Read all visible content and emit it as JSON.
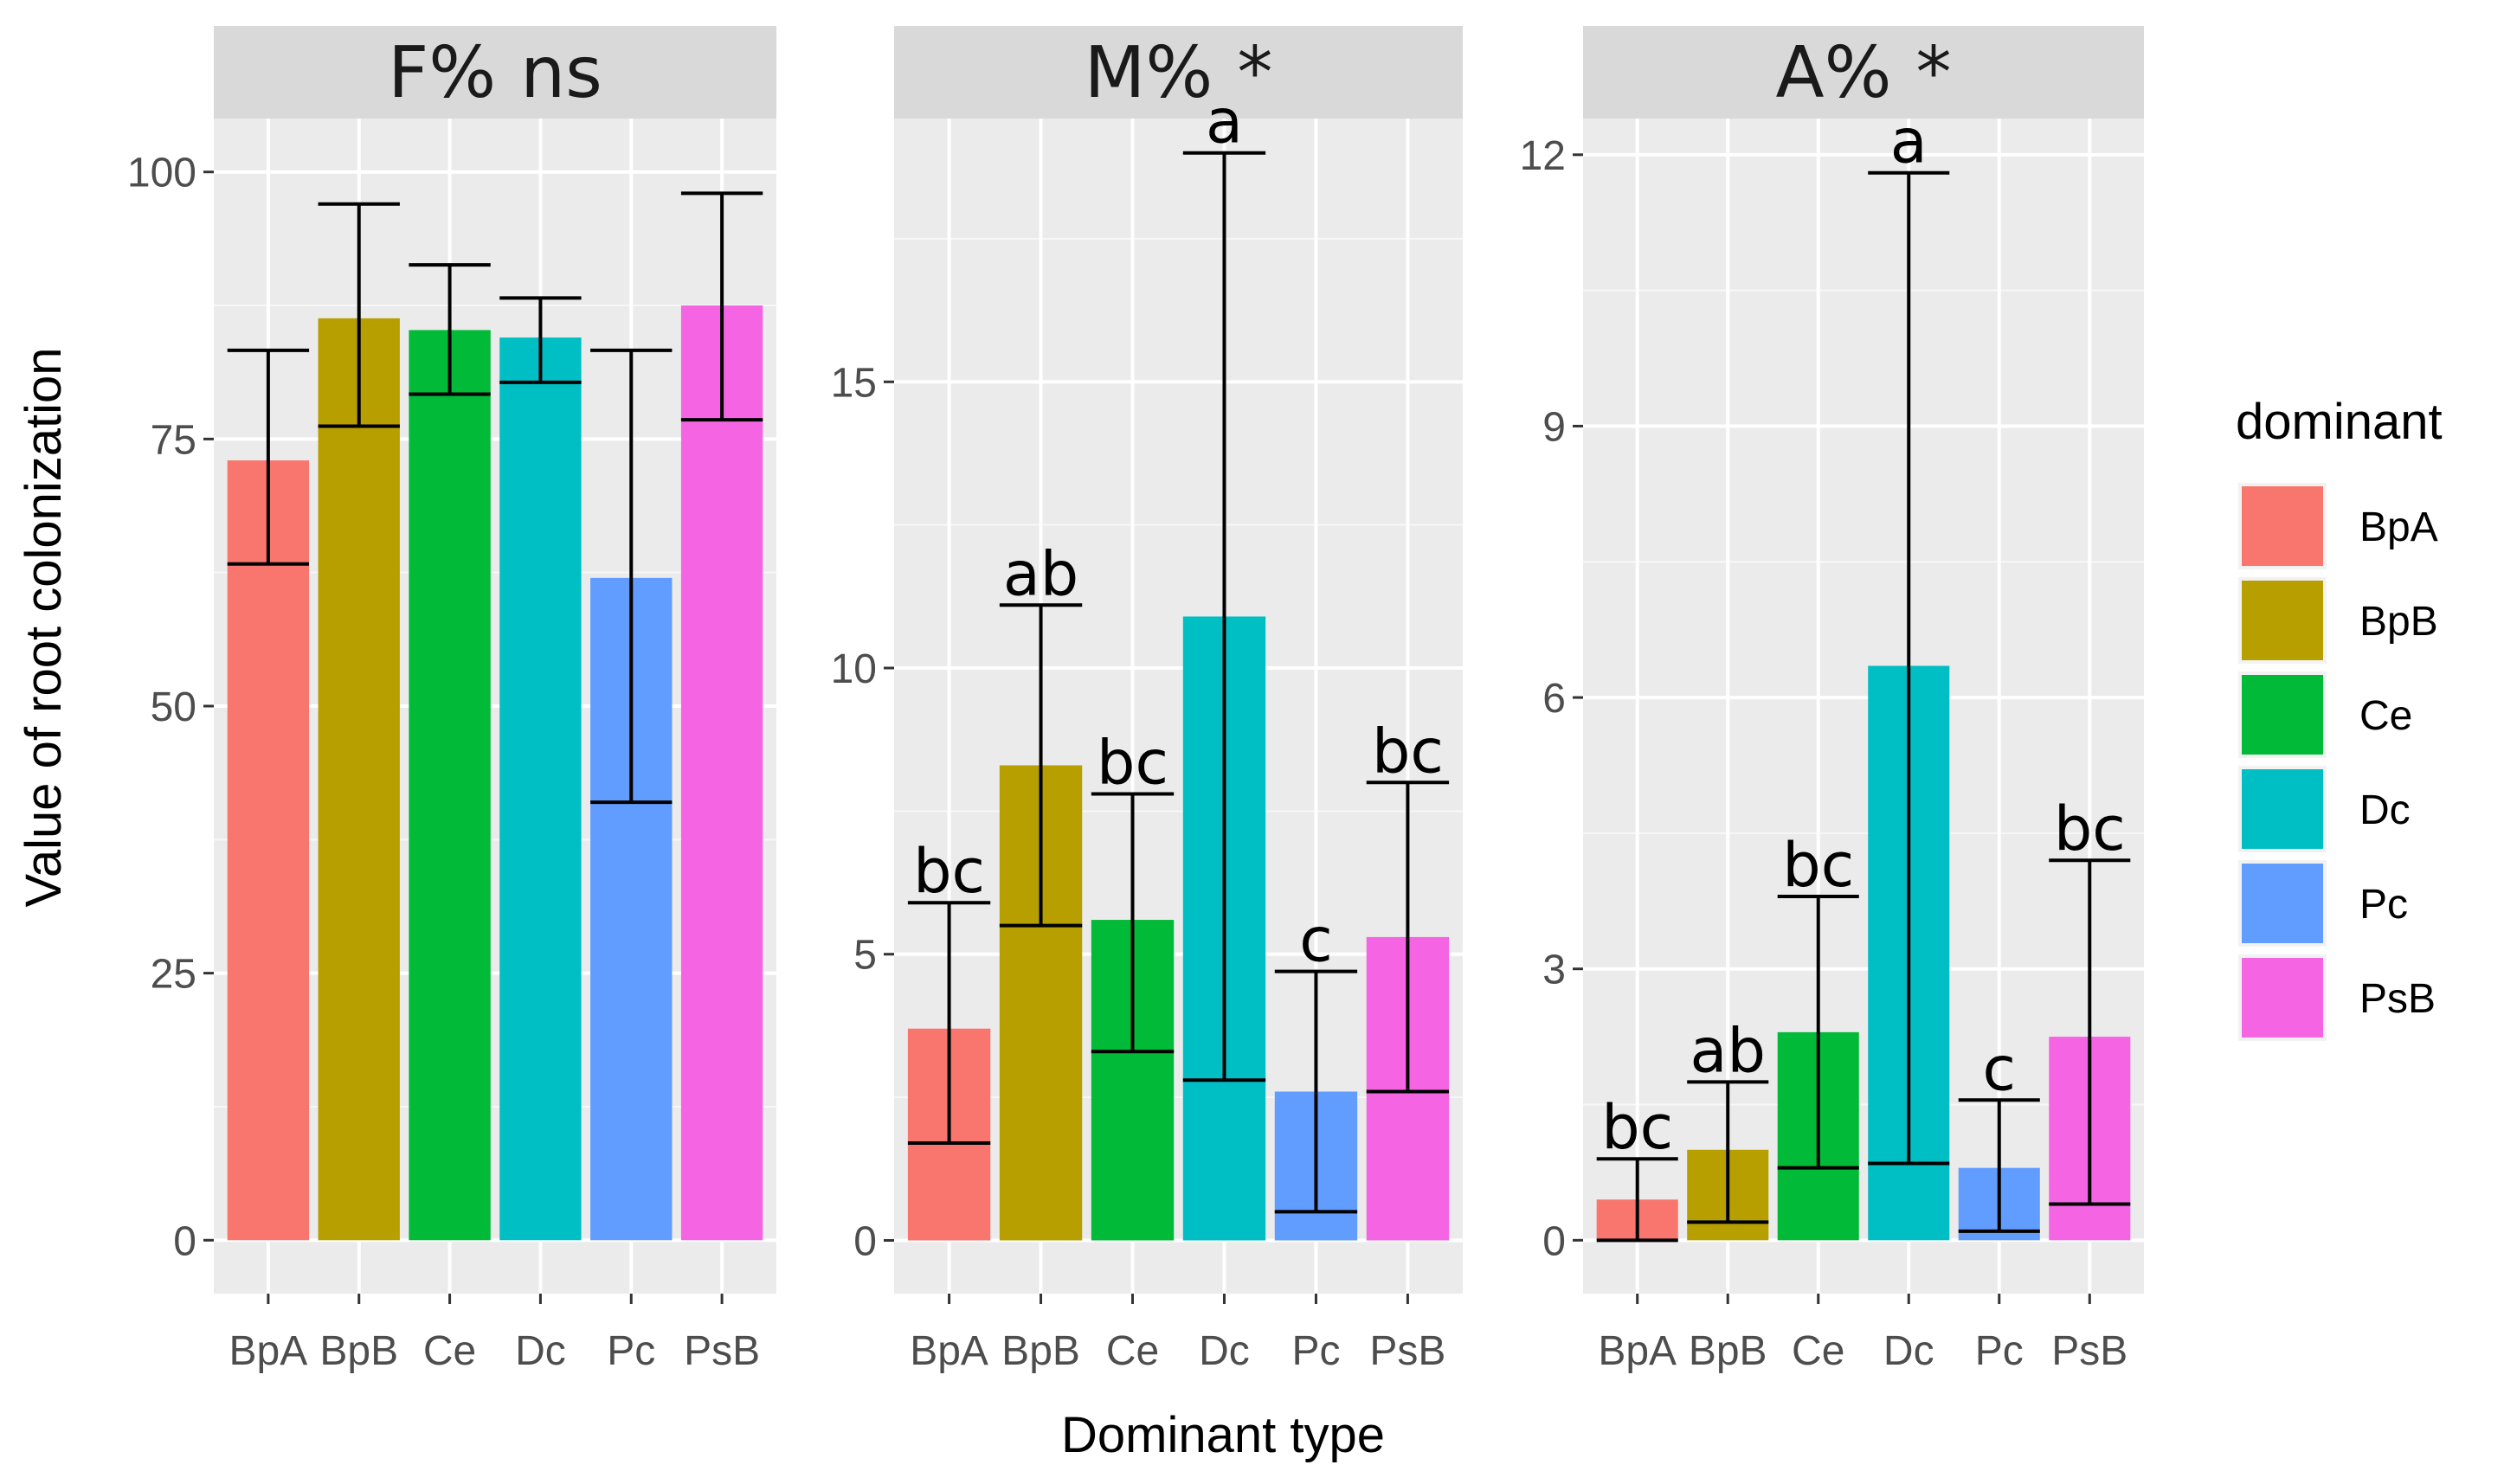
{
  "chart_data": {
    "type": "bar",
    "x_title": "Dominant type",
    "y_title": "Value of root colonization",
    "legend": {
      "title": "dominant",
      "placement": "right",
      "entries": [
        {
          "label": "BpA",
          "color": "#F8766D"
        },
        {
          "label": "BpB",
          "color": "#B79F00"
        },
        {
          "label": "Ce",
          "color": "#00BA38"
        },
        {
          "label": "Dc",
          "color": "#00BFC4"
        },
        {
          "label": "Pc",
          "color": "#619CFF"
        },
        {
          "label": "PsB",
          "color": "#F564E3"
        }
      ]
    },
    "categories": [
      "BpA",
      "BpB",
      "Ce",
      "Dc",
      "Pc",
      "PsB"
    ],
    "panels": [
      {
        "title": "F%",
        "sig_label": "ns",
        "ylim": [
          -5,
          105
        ],
        "yticks": [
          0,
          25,
          50,
          75,
          100
        ],
        "ytick_labels": [
          "0",
          "25",
          "50",
          "75",
          "100"
        ],
        "values": [
          73.0,
          86.3,
          85.2,
          84.5,
          62.0,
          87.5
        ],
        "err_low": [
          63.3,
          76.2,
          79.2,
          80.3,
          41.0,
          76.8
        ],
        "err_high": [
          83.3,
          97.0,
          91.3,
          88.2,
          83.3,
          98.0
        ],
        "letters": [
          "",
          "",
          "",
          "",
          "",
          ""
        ]
      },
      {
        "title": "M%",
        "sig_label": "*",
        "ylim": [
          -0.93,
          19.6
        ],
        "yticks": [
          0,
          5,
          10,
          15
        ],
        "ytick_labels": [
          "0",
          "5",
          "10",
          "15"
        ],
        "values": [
          3.7,
          8.3,
          5.6,
          10.9,
          2.6,
          5.3
        ],
        "err_low": [
          1.7,
          5.5,
          3.3,
          2.8,
          0.5,
          2.6
        ],
        "err_high": [
          5.9,
          11.1,
          7.8,
          19.0,
          4.7,
          8.0
        ],
        "letters": [
          "bc",
          "ab",
          "bc",
          "a",
          "c",
          "bc"
        ]
      },
      {
        "title": "A%",
        "sig_label": "*",
        "ylim": [
          -0.59,
          12.4
        ],
        "yticks": [
          0,
          3,
          6,
          9,
          12
        ],
        "ytick_labels": [
          "0",
          "3",
          "6",
          "9",
          "12"
        ],
        "values": [
          0.45,
          1.0,
          2.3,
          6.35,
          0.8,
          2.25
        ],
        "err_low": [
          0.0,
          0.2,
          0.8,
          0.85,
          0.1,
          0.4
        ],
        "err_high": [
          0.9,
          1.75,
          3.8,
          11.8,
          1.55,
          4.2
        ],
        "letters": [
          "bc",
          "ab",
          "bc",
          "a",
          "c",
          "bc"
        ]
      }
    ]
  }
}
